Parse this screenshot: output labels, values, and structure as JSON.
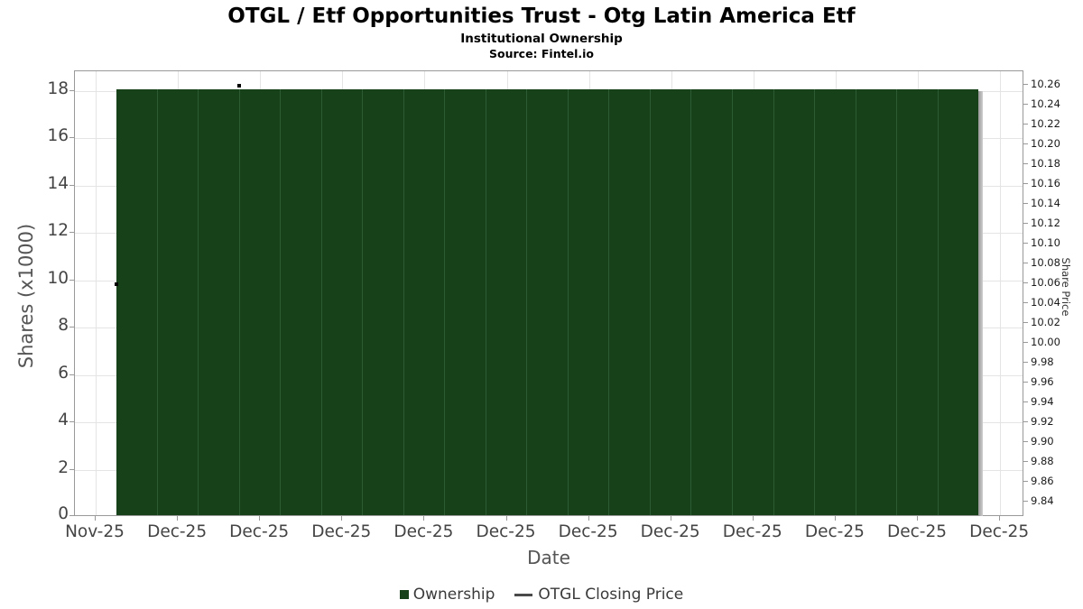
{
  "header": {
    "title": "OTGL / Etf Opportunities Trust - Otg Latin America Etf",
    "subtitle": "Institutional Ownership",
    "source": "Source: Fintel.io"
  },
  "axes": {
    "x_label": "Date",
    "y_left_label": "Shares (x1000)",
    "y_right_label": "Share Price",
    "x_ticks": [
      "Nov-25",
      "Dec-25",
      "Dec-25",
      "Dec-25",
      "Dec-25",
      "Dec-25",
      "Dec-25",
      "Dec-25",
      "Dec-25",
      "Dec-25",
      "Dec-25",
      "Dec-25"
    ],
    "y_left_ticks": [
      "18",
      "16",
      "14",
      "12",
      "10",
      "8",
      "6",
      "4",
      "2",
      "0"
    ],
    "y_right_ticks": [
      "10.26",
      "10.24",
      "10.22",
      "10.20",
      "10.18",
      "10.16",
      "10.14",
      "10.12",
      "10.10",
      "10.08",
      "10.06",
      "10.04",
      "10.02",
      "10.00",
      "9.98",
      "9.96",
      "9.94",
      "9.92",
      "9.90",
      "9.88",
      "9.86",
      "9.84"
    ]
  },
  "legend": {
    "items": [
      {
        "label": "Ownership",
        "type": "bar",
        "color": "#174219"
      },
      {
        "label": "OTGL Closing Price",
        "type": "line",
        "color": "#4a4a4a"
      }
    ]
  },
  "colors": {
    "bar_fill": "#174219",
    "bar_separator": "#2d5b33",
    "gridline": "#e4e4e4",
    "plot_border": "#999999",
    "price_line": "#000000"
  },
  "chart_data": {
    "type": "bar",
    "title": "OTGL / Etf Opportunities Trust - Otg Latin America Etf",
    "subtitle": "Institutional Ownership",
    "source": "Source: Fintel.io",
    "xlabel": "Date",
    "ylabel_left": "Shares (x1000)",
    "ylabel_right": "Share Price",
    "x_tick_labels": [
      "Nov-25",
      "Dec-25",
      "Dec-25",
      "Dec-25",
      "Dec-25",
      "Dec-25",
      "Dec-25",
      "Dec-25",
      "Dec-25",
      "Dec-25",
      "Dec-25",
      "Dec-25"
    ],
    "ylim_left": [
      0,
      18.8
    ],
    "ylim_right": [
      9.82,
      10.27
    ],
    "grid": true,
    "legend_position": "bottom",
    "series": [
      {
        "name": "Ownership",
        "type": "bar",
        "axis": "left",
        "color": "#174219",
        "unit": "shares x1000",
        "values": [
          18,
          18,
          18,
          18,
          18,
          18,
          18,
          18,
          18,
          18,
          18,
          18,
          18,
          18,
          18,
          18,
          18,
          18,
          18,
          18,
          18
        ]
      },
      {
        "name": "OTGL Closing Price",
        "type": "line",
        "axis": "right",
        "color": "#000000",
        "note": "line is almost entirely hidden behind the ownership bars; only two marks visible",
        "visible_points": [
          {
            "bar_index": 0,
            "price": 10.06
          },
          {
            "bar_index": 3,
            "price": 10.26
          }
        ]
      }
    ]
  }
}
